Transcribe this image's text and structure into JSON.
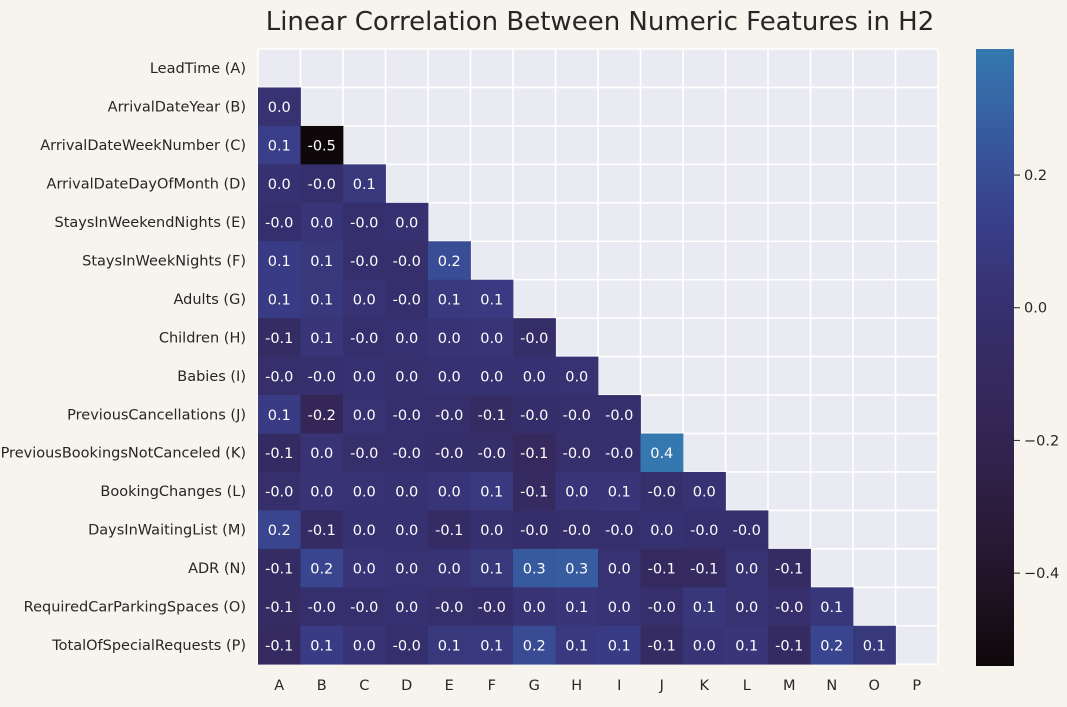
{
  "chart_data": {
    "type": "heatmap",
    "title": "Linear Correlation Between Numeric Features in H2",
    "row_labels": [
      "LeadTime (A)",
      "ArrivalDateYear (B)",
      "ArrivalDateWeekNumber (C)",
      "ArrivalDateDayOfMonth (D)",
      "StaysInWeekendNights (E)",
      "StaysInWeekNights (F)",
      "Adults (G)",
      "Children (H)",
      "Babies (I)",
      "PreviousCancellations (J)",
      "PreviousBookingsNotCanceled (K)",
      "BookingChanges (L)",
      "DaysInWaitingList (M)",
      "ADR (N)",
      "RequiredCarParkingSpaces (O)",
      "TotalOfSpecialRequests (P)"
    ],
    "col_labels": [
      "A",
      "B",
      "C",
      "D",
      "E",
      "F",
      "G",
      "H",
      "I",
      "J",
      "K",
      "L",
      "M",
      "N",
      "O",
      "P"
    ],
    "mask": "upper-triangle-including-diagonal",
    "values": [
      [],
      [
        0.02
      ],
      [
        0.12,
        -0.54
      ],
      [
        0.01,
        -0.01,
        0.07
      ],
      [
        -0.01,
        0.04,
        -0.01,
        0.01
      ],
      [
        0.1,
        0.07,
        -0.01,
        -0.02,
        0.2
      ],
      [
        0.1,
        0.07,
        0.02,
        -0.01,
        0.08,
        0.09
      ],
      [
        -0.07,
        0.05,
        -0.01,
        0.01,
        0.03,
        0.04,
        -0.04
      ],
      [
        -0.02,
        -0.01,
        0.01,
        0.0,
        0.01,
        0.01,
        0.01,
        0.02
      ],
      [
        0.1,
        -0.17,
        0.02,
        -0.01,
        -0.02,
        -0.07,
        -0.03,
        -0.02,
        -0.01
      ],
      [
        -0.08,
        0.03,
        -0.02,
        -0.01,
        -0.03,
        -0.04,
        -0.12,
        -0.02,
        -0.01,
        0.39
      ],
      [
        -0.02,
        0.03,
        0.02,
        0.01,
        0.04,
        0.08,
        -0.09,
        0.04,
        0.05,
        -0.02,
        0.02
      ],
      [
        0.16,
        -0.06,
        0.01,
        0.01,
        -0.06,
        0.0,
        -0.03,
        -0.02,
        -0.01,
        0.01,
        -0.01,
        -0.01
      ],
      [
        -0.07,
        0.16,
        0.04,
        0.02,
        0.03,
        0.07,
        0.26,
        0.27,
        0.02,
        -0.1,
        -0.09,
        0.02,
        -0.07
      ],
      [
        -0.07,
        -0.01,
        -0.01,
        0.01,
        -0.02,
        -0.03,
        0.03,
        0.05,
        0.03,
        -0.02,
        0.06,
        0.02,
        -0.02,
        0.06
      ],
      [
        -0.09,
        0.1,
        0.03,
        -0.01,
        0.07,
        0.08,
        0.19,
        0.08,
        0.1,
        -0.07,
        0.03,
        0.05,
        -0.08,
        0.16,
        0.07
      ]
    ],
    "value_format": "one-decimal",
    "colorbar": {
      "colormap": "icefire-low-half",
      "range": [
        -0.54,
        0.39
      ],
      "ticks": [
        -0.4,
        -0.2,
        0.0,
        0.2
      ],
      "tick_labels": [
        "−0.4",
        "−0.2",
        "0.0",
        "0.2"
      ],
      "orientation": "vertical",
      "placement": "right"
    },
    "grid": true,
    "xlabel": "",
    "ylabel": ""
  }
}
